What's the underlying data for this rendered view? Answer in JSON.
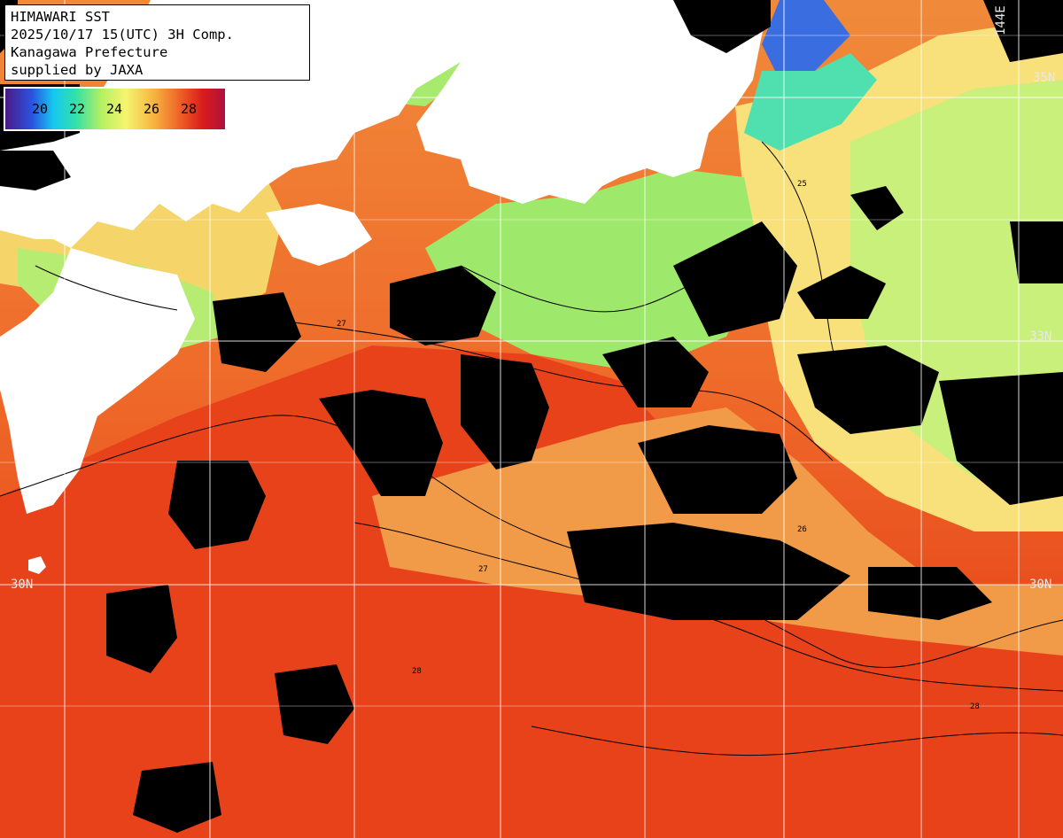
{
  "header": {
    "line1": "HIMAWARI SST",
    "line2": "2025/10/17 15(UTC) 3H Comp.",
    "line3": "Kanagawa Prefecture",
    "line4": "supplied by JAXA"
  },
  "colorbar": {
    "ticks": [
      "20",
      "22",
      "24",
      "26",
      "28"
    ]
  },
  "map_labels": {
    "lon_top_right": "144E",
    "lat_35_right": "35N",
    "lat_33_right": "33N",
    "lat_30_left": "30N",
    "lat_30_right": "30N"
  },
  "contour_labels": [
    "25",
    "26",
    "27",
    "28"
  ],
  "colors": {
    "land": "#ffffff",
    "cloud_mask": "#000000",
    "sst_warm": "#e84a1c",
    "sst_mid": "#f7b23f",
    "sst_cool": "#9ef06a",
    "grid": "#ffffff",
    "contour": "#000000"
  }
}
